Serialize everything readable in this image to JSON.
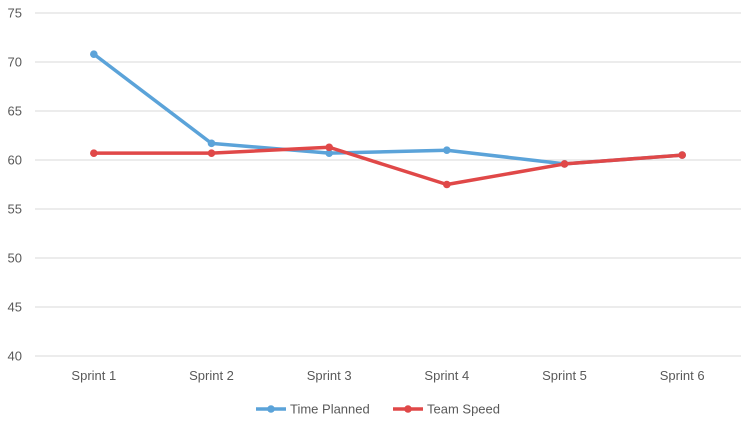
{
  "chart_data": {
    "type": "line",
    "title": "",
    "xlabel": "",
    "ylabel": "",
    "categories": [
      "Sprint 1",
      "Sprint 2",
      "Sprint 3",
      "Sprint 4",
      "Sprint 5",
      "Sprint 6"
    ],
    "ylim": [
      40,
      75
    ],
    "yticks": [
      40,
      45,
      50,
      55,
      60,
      65,
      70,
      75
    ],
    "grid": true,
    "legend_position": "bottom",
    "series": [
      {
        "name": "Time Planned",
        "color": "#5BA3D9",
        "values": [
          70.8,
          61.7,
          60.7,
          61.0,
          59.6,
          60.5
        ]
      },
      {
        "name": "Team Speed",
        "color": "#E04848",
        "values": [
          60.7,
          60.7,
          61.3,
          57.5,
          59.6,
          60.5
        ]
      }
    ]
  }
}
